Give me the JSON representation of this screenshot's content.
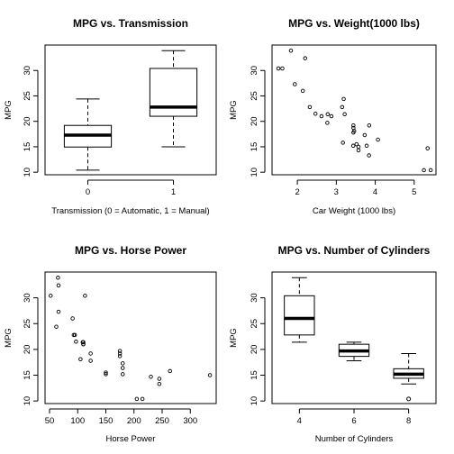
{
  "chart_data": [
    {
      "type": "box",
      "title": "MPG vs. Transmission",
      "xlabel": "Transmission (0 = Automatic, 1 = Manual)",
      "ylabel": "MPG",
      "categories": [
        "0",
        "1"
      ],
      "yticks": [
        10,
        15,
        20,
        25,
        30
      ],
      "ylim": [
        9.5,
        35
      ],
      "boxes": [
        {
          "min": 10.4,
          "q1": 14.95,
          "median": 17.3,
          "q3": 19.2,
          "max": 24.4
        },
        {
          "min": 15.0,
          "q1": 21.0,
          "median": 22.8,
          "q3": 30.4,
          "max": 33.9
        }
      ],
      "outliers": []
    },
    {
      "type": "scatter",
      "title": "MPG vs. Weight(1000 lbs)",
      "xlabel": "Car Weight (1000 lbs)",
      "ylabel": "MPG",
      "xticks": [
        2,
        3,
        4,
        5
      ],
      "yticks": [
        10,
        15,
        20,
        25,
        30
      ],
      "xlim": [
        1.35,
        5.56
      ],
      "ylim": [
        9.5,
        35
      ],
      "points": [
        [
          2.62,
          21.0
        ],
        [
          2.875,
          21.0
        ],
        [
          2.32,
          22.8
        ],
        [
          3.215,
          21.4
        ],
        [
          3.44,
          18.7
        ],
        [
          3.46,
          18.1
        ],
        [
          3.57,
          14.3
        ],
        [
          3.19,
          24.4
        ],
        [
          3.15,
          22.8
        ],
        [
          3.44,
          19.2
        ],
        [
          3.44,
          17.8
        ],
        [
          4.07,
          16.4
        ],
        [
          3.73,
          17.3
        ],
        [
          3.78,
          15.2
        ],
        [
          5.25,
          10.4
        ],
        [
          5.424,
          10.4
        ],
        [
          5.345,
          14.7
        ],
        [
          2.2,
          32.4
        ],
        [
          1.615,
          30.4
        ],
        [
          1.835,
          33.9
        ],
        [
          2.465,
          21.5
        ],
        [
          3.52,
          15.5
        ],
        [
          3.435,
          15.2
        ],
        [
          3.84,
          13.3
        ],
        [
          3.845,
          19.2
        ],
        [
          1.935,
          27.3
        ],
        [
          2.14,
          26.0
        ],
        [
          1.513,
          30.4
        ],
        [
          3.17,
          15.8
        ],
        [
          2.77,
          19.7
        ],
        [
          3.57,
          15.0
        ],
        [
          2.78,
          21.4
        ]
      ]
    },
    {
      "type": "scatter",
      "title": "MPG vs. Horse Power",
      "xlabel": "Horse Power",
      "ylabel": "MPG",
      "xticks": [
        50,
        100,
        150,
        200,
        250,
        300
      ],
      "yticks": [
        10,
        15,
        20,
        25,
        30
      ],
      "xlim": [
        42,
        346
      ],
      "ylim": [
        9.5,
        35
      ],
      "points": [
        [
          110,
          21.0
        ],
        [
          110,
          21.0
        ],
        [
          93,
          22.8
        ],
        [
          110,
          21.4
        ],
        [
          175,
          18.7
        ],
        [
          105,
          18.1
        ],
        [
          245,
          14.3
        ],
        [
          62,
          24.4
        ],
        [
          95,
          22.8
        ],
        [
          123,
          19.2
        ],
        [
          123,
          17.8
        ],
        [
          180,
          16.4
        ],
        [
          180,
          17.3
        ],
        [
          180,
          15.2
        ],
        [
          205,
          10.4
        ],
        [
          215,
          10.4
        ],
        [
          230,
          14.7
        ],
        [
          66,
          32.4
        ],
        [
          52,
          30.4
        ],
        [
          65,
          33.9
        ],
        [
          97,
          21.5
        ],
        [
          150,
          15.5
        ],
        [
          150,
          15.2
        ],
        [
          245,
          13.3
        ],
        [
          175,
          19.2
        ],
        [
          66,
          27.3
        ],
        [
          91,
          26.0
        ],
        [
          113,
          30.4
        ],
        [
          264,
          15.8
        ],
        [
          175,
          19.7
        ],
        [
          335,
          15.0
        ],
        [
          109,
          21.4
        ]
      ]
    },
    {
      "type": "box",
      "title": "MPG vs. Number of Cylinders",
      "xlabel": "Number of Cylinders",
      "ylabel": "MPG",
      "categories": [
        "4",
        "6",
        "8"
      ],
      "yticks": [
        10,
        15,
        20,
        25,
        30
      ],
      "ylim": [
        9.5,
        35
      ],
      "boxes": [
        {
          "min": 21.4,
          "q1": 22.8,
          "median": 26.0,
          "q3": 30.4,
          "max": 33.9
        },
        {
          "min": 17.8,
          "q1": 18.65,
          "median": 19.7,
          "q3": 21.0,
          "max": 21.4
        },
        {
          "min": 13.3,
          "q1": 14.4,
          "median": 15.2,
          "q3": 16.25,
          "max": 19.2
        }
      ],
      "outliers": [
        {
          "category": "8",
          "value": 10.4
        }
      ]
    }
  ]
}
